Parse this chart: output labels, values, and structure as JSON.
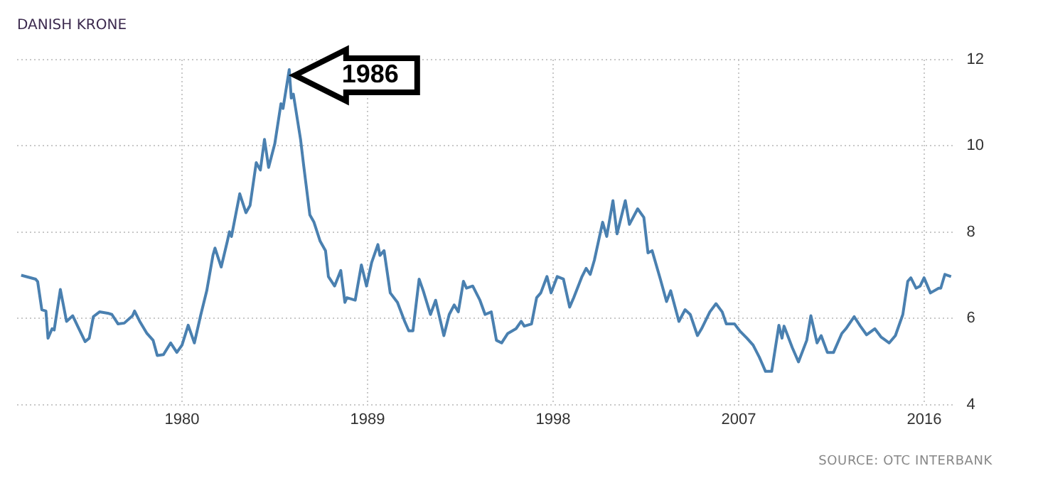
{
  "chart_data": {
    "type": "line",
    "title": "DANISH KRONE",
    "x": [
      1972.2,
      1972.9,
      1973.0,
      1973.2,
      1973.4,
      1973.5,
      1973.7,
      1973.8,
      1974.1,
      1974.4,
      1974.7,
      1975.0,
      1975.3,
      1975.5,
      1975.7,
      1976.0,
      1976.4,
      1976.6,
      1976.9,
      1977.2,
      1977.6,
      1977.7,
      1977.95,
      1978.3,
      1978.6,
      1978.8,
      1979.1,
      1979.45,
      1979.75,
      1980.0,
      1980.3,
      1980.6,
      1980.9,
      1981.2,
      1981.5,
      1981.6,
      1981.9,
      1982.2,
      1982.3,
      1982.4,
      1982.8,
      1983.1,
      1983.3,
      1983.6,
      1983.8,
      1984.0,
      1984.2,
      1984.5,
      1984.8,
      1984.9,
      1985.2,
      1985.3,
      1985.4,
      1985.75,
      1985.9,
      1986.2,
      1986.4,
      1986.7,
      1986.96,
      1987.1,
      1987.4,
      1987.7,
      1987.9,
      1988.0,
      1988.4,
      1988.7,
      1988.95,
      1989.2,
      1989.5,
      1989.6,
      1989.8,
      1990.1,
      1990.45,
      1990.8,
      1991.0,
      1991.2,
      1991.5,
      1991.7,
      1992.05,
      1992.3,
      1992.7,
      1992.96,
      1993.2,
      1993.4,
      1993.65,
      1993.8,
      1994.1,
      1994.45,
      1994.7,
      1995.0,
      1995.25,
      1995.5,
      1995.8,
      1996.2,
      1996.45,
      1996.6,
      1996.95,
      1997.2,
      1997.4,
      1997.7,
      1997.9,
      1998.2,
      1998.5,
      1998.8,
      1999.0,
      1999.4,
      1999.6,
      1999.8,
      2000.0,
      2000.4,
      2000.6,
      2000.9,
      2001.1,
      2001.5,
      2001.7,
      2002.1,
      2002.4,
      2002.6,
      2002.8,
      2003.2,
      2003.5,
      2003.7,
      2004.1,
      2004.4,
      2004.65,
      2005.0,
      2005.2,
      2005.6,
      2005.9,
      2006.2,
      2006.4,
      2006.8,
      2007.05,
      2007.4,
      2007.7,
      2008.0,
      2008.3,
      2008.6,
      2008.95,
      2009.1,
      2009.2,
      2009.6,
      2009.9,
      2010.3,
      2010.5,
      2010.8,
      2011.0,
      2011.3,
      2011.6,
      2012.0,
      2012.2,
      2012.6,
      2012.9,
      2013.2,
      2013.6,
      2013.9,
      2014.3,
      2014.6,
      2014.96,
      2015.2,
      2015.35,
      2015.6,
      2015.8,
      2015.99,
      2016.3,
      2016.7,
      2016.8,
      2017.0,
      2017.3
    ],
    "series": [
      {
        "color": "#4a80b0",
        "values": [
          7.0,
          6.91,
          6.85,
          6.2,
          6.17,
          5.54,
          5.76,
          5.73,
          6.67,
          5.93,
          6.06,
          5.76,
          5.46,
          5.54,
          6.04,
          6.15,
          6.12,
          6.09,
          5.87,
          5.89,
          6.06,
          6.17,
          5.93,
          5.65,
          5.49,
          5.14,
          5.16,
          5.43,
          5.21,
          5.38,
          5.84,
          5.43,
          6.06,
          6.64,
          7.46,
          7.63,
          7.19,
          7.79,
          8.01,
          7.9,
          8.89,
          8.45,
          8.62,
          9.61,
          9.44,
          10.15,
          9.5,
          10.05,
          10.98,
          10.87,
          11.77,
          11.11,
          11.2,
          10.15,
          9.55,
          8.4,
          8.23,
          7.79,
          7.57,
          6.97,
          6.75,
          7.11,
          6.37,
          6.48,
          6.42,
          7.24,
          6.75,
          7.3,
          7.71,
          7.46,
          7.57,
          6.59,
          6.37,
          5.93,
          5.71,
          5.71,
          6.91,
          6.64,
          6.09,
          6.42,
          5.6,
          6.09,
          6.31,
          6.15,
          6.86,
          6.7,
          6.75,
          6.42,
          6.09,
          6.15,
          5.49,
          5.43,
          5.65,
          5.76,
          5.93,
          5.82,
          5.87,
          6.48,
          6.59,
          6.97,
          6.59,
          6.97,
          6.91,
          6.26,
          6.48,
          6.97,
          7.16,
          7.02,
          7.35,
          8.23,
          7.9,
          8.73,
          7.96,
          8.73,
          8.18,
          8.54,
          8.34,
          7.52,
          7.57,
          6.91,
          6.39,
          6.64,
          5.93,
          6.2,
          6.09,
          5.6,
          5.76,
          6.15,
          6.34,
          6.15,
          5.87,
          5.87,
          5.71,
          5.54,
          5.38,
          5.1,
          4.77,
          4.77,
          5.84,
          5.54,
          5.82,
          5.32,
          4.99,
          5.49,
          6.06,
          5.43,
          5.6,
          5.21,
          5.21,
          5.65,
          5.76,
          6.04,
          5.82,
          5.62,
          5.76,
          5.57,
          5.43,
          5.6,
          6.09,
          6.86,
          6.94,
          6.7,
          6.75,
          6.94,
          6.59,
          6.7,
          6.7,
          7.02,
          6.97
        ]
      }
    ],
    "xlim": [
      1972,
      2017.5
    ],
    "xticks": [
      1980,
      1989,
      1998,
      2007,
      2016
    ],
    "ylim": [
      4,
      12
    ],
    "yticks": [
      4,
      6,
      8,
      10,
      12
    ],
    "grid": true,
    "annotations": [
      {
        "text": "1986",
        "x": 1985.2,
        "y": 11.77
      },
      "SOURCE: OTC INTERBANK"
    ]
  }
}
